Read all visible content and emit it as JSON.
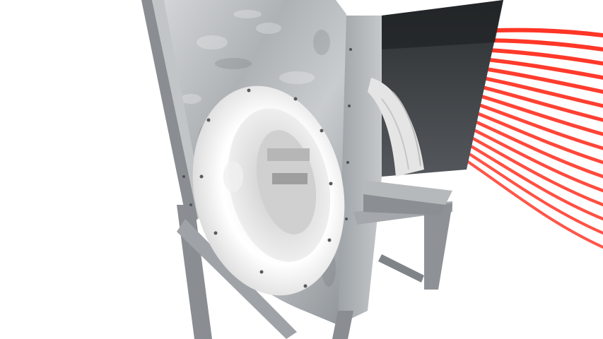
{
  "scene": {
    "subject": "centrifugal-fan-housing",
    "background_color": "#ffffff",
    "housing_color": "#b9bcbf",
    "frame_color": "#8e9296",
    "inlet_color": "#f2f2f2",
    "impeller_color": "#d9d9d9",
    "outlet_interior_color": "#3a3d40",
    "airflow_color": "#ff2a1a",
    "airflow_line_count": 16
  }
}
